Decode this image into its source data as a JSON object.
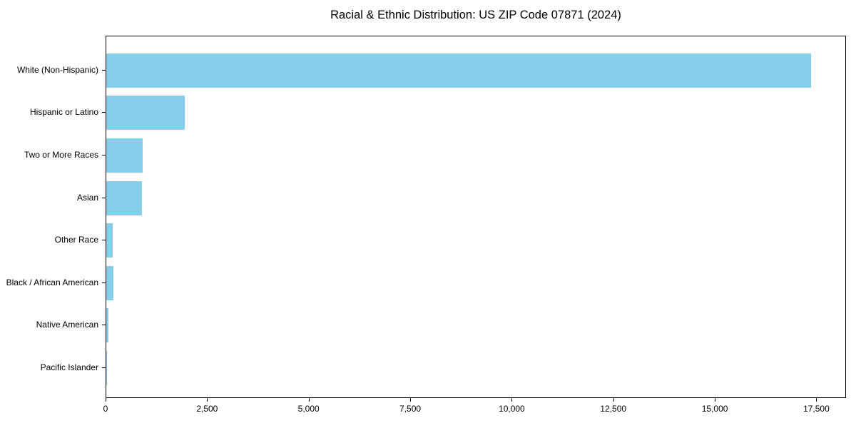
{
  "chart_data": {
    "type": "bar",
    "orientation": "horizontal",
    "title": "Racial & Ethnic Distribution: US ZIP Code 07871 (2024)",
    "xlabel": "",
    "ylabel": "",
    "categories": [
      "White (Non-Hispanic)",
      "Hispanic or Latino",
      "Two or More Races",
      "Asian",
      "Other Race",
      "Black / African American",
      "Native American",
      "Pacific Islander"
    ],
    "values": [
      17350,
      1925,
      890,
      870,
      150,
      180,
      60,
      5
    ],
    "xlim": [
      0,
      18230
    ],
    "xticks": [
      0,
      2500,
      5000,
      7500,
      10000,
      12500,
      15000,
      17500
    ],
    "xtick_labels": [
      "0",
      "2,500",
      "5,000",
      "7,500",
      "10,000",
      "12,500",
      "15,000",
      "17,500"
    ],
    "bar_color": "#87CEEB",
    "spine_color": "#000000",
    "text_color": "#000000",
    "grid": false,
    "legend": null
  }
}
